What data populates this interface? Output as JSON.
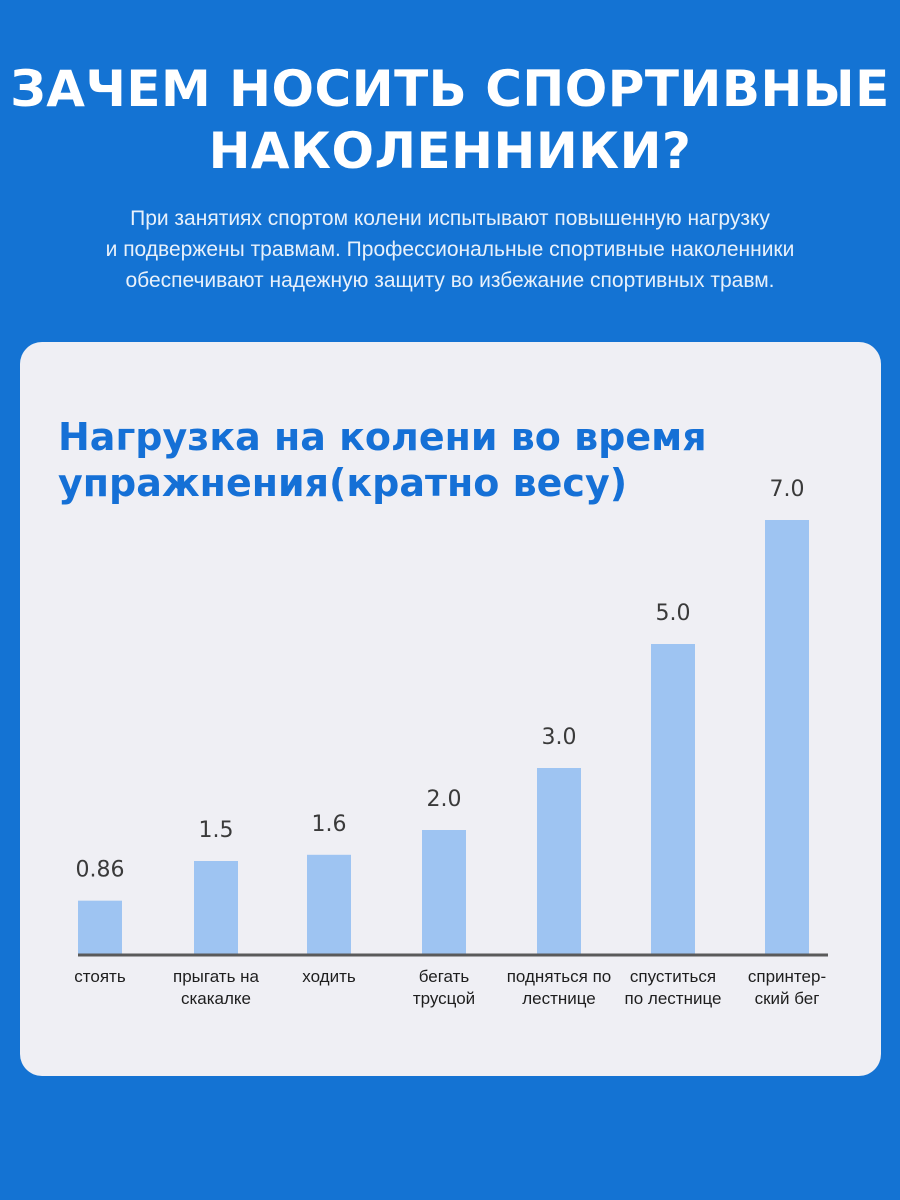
{
  "headline": [
    "ЗАЧЕМ НОСИТЬ СПОРТИВНЫЕ",
    "НАКОЛЕННИКИ?"
  ],
  "intro": [
    "При занятиях спортом колени испытывают повышенную нагрузку",
    "и подвержены травмам. Профессиональные спортивные наколенники",
    "обеспечивают надежную защиту во избежание спортивных травм."
  ],
  "colors": {
    "background": "#1473d3",
    "card": "#efeff4",
    "bar": "#9ec4f2",
    "title": "#1570d6",
    "axis": "#5a5a5a"
  },
  "chart_data": {
    "type": "bar",
    "title": [
      "Нагрузка на колени во время",
      "упражнения(кратно весу)"
    ],
    "categories": [
      [
        "стоять"
      ],
      [
        "прыгать на",
        "скакалке"
      ],
      [
        "ходить"
      ],
      [
        "бегать",
        "трусцой"
      ],
      [
        "подняться по",
        "лестнице"
      ],
      [
        "спуститься",
        "по лестнице"
      ],
      [
        "спринтер-",
        "ский бег"
      ]
    ],
    "values": [
      0.86,
      1.5,
      1.6,
      2.0,
      3.0,
      5.0,
      7.0
    ],
    "value_labels": [
      "0.86",
      "1.5",
      "1.6",
      "2.0",
      "3.0",
      "5.0",
      "7.0"
    ],
    "ylabel": "",
    "xlabel": "",
    "grid": false,
    "legend": "none"
  }
}
